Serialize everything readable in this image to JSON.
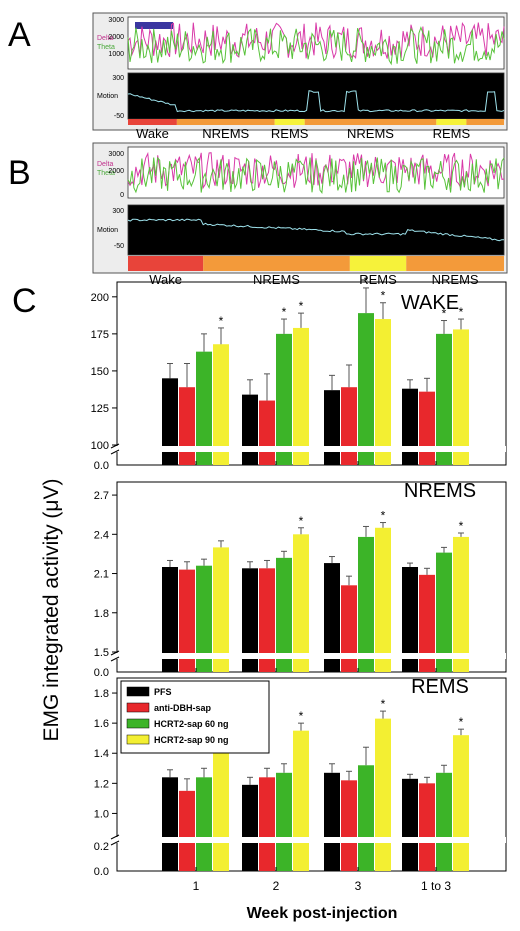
{
  "panels": {
    "A": {
      "letter": "A",
      "eeg_ticks": [
        "3000",
        "2000",
        "1000"
      ],
      "delta_label": "Delta",
      "theta_label": "Theta",
      "motion_label": "Motion",
      "motion_ticks": [
        "300",
        "-50"
      ],
      "stages": [
        {
          "label": "Wake",
          "color": "#e8443a",
          "start": 0.0,
          "end": 0.13
        },
        {
          "label": "NREMS",
          "color": "#f39a3a",
          "start": 0.13,
          "end": 0.39
        },
        {
          "label": "REMS",
          "color": "#f6f23a",
          "start": 0.39,
          "end": 0.47
        },
        {
          "label": "NREMS",
          "color": "#f39a3a",
          "start": 0.47,
          "end": 0.82
        },
        {
          "label": "REMS",
          "color": "#f6f23a",
          "start": 0.82,
          "end": 0.9
        },
        {
          "label": "",
          "color": "#f39a3a",
          "start": 0.9,
          "end": 1.0
        }
      ]
    },
    "B": {
      "letter": "B",
      "eeg_ticks": [
        "3000",
        "2000",
        "0"
      ],
      "delta_label": "Delta",
      "theta_label": "Theta",
      "motion_label": "Motion",
      "motion_ticks": [
        "300",
        "-50"
      ],
      "stages": [
        {
          "label": "Wake",
          "color": "#e8443a",
          "start": 0.0,
          "end": 0.2
        },
        {
          "label": "NREMS",
          "color": "#f39a3a",
          "start": 0.2,
          "end": 0.59
        },
        {
          "label": "REMS",
          "color": "#f6f23a",
          "start": 0.59,
          "end": 0.74
        },
        {
          "label": "NREMS",
          "color": "#f39a3a",
          "start": 0.74,
          "end": 1.0
        }
      ]
    },
    "C": {
      "letter": "C"
    }
  },
  "chart_data": {
    "type": "bar",
    "ylabel": "EMG integrated activity (μV)",
    "xlabel": "Week  post-injection",
    "categories": [
      "1",
      "2",
      "3",
      "1 to 3"
    ],
    "legend": {
      "placement": "top-left of REMS subplot",
      "entries": [
        "PFS",
        "anti-DBH-sap",
        "HCRT2-sap 60 ng",
        "HCRT2-sap 90 ng"
      ],
      "colors": [
        "#000000",
        "#e8282c",
        "#3cb428",
        "#f3ef32"
      ]
    },
    "subplots": [
      {
        "title": "WAKE",
        "upper_range": [
          100,
          210
        ],
        "break_bottom": "0.0",
        "ticks": [
          "200",
          "175",
          "150",
          "125",
          "100"
        ],
        "tick_values": [
          200,
          175,
          150,
          125,
          100
        ],
        "series": [
          {
            "values": [
              145,
              134,
              137,
              138
            ],
            "errors": [
              10,
              10,
              10,
              6
            ]
          },
          {
            "values": [
              139,
              130,
              139,
              136
            ],
            "errors": [
              16,
              18,
              15,
              9
            ]
          },
          {
            "values": [
              163,
              175,
              189,
              175
            ],
            "errors": [
              12,
              10,
              17,
              9
            ]
          },
          {
            "values": [
              168,
              179,
              185,
              178
            ],
            "errors": [
              11,
              10,
              11,
              7
            ]
          }
        ],
        "significant": [
          [
            0,
            3
          ],
          [
            1,
            2
          ],
          [
            1,
            3
          ],
          [
            2,
            2
          ],
          [
            2,
            3
          ],
          [
            3,
            2
          ],
          [
            3,
            3
          ]
        ]
      },
      {
        "title": "NREMS",
        "upper_range": [
          1.5,
          2.8
        ],
        "break_bottom": "0.0",
        "ticks": [
          "2.7",
          "2.4",
          "2.1",
          "1.8",
          "1.5"
        ],
        "tick_values": [
          2.7,
          2.4,
          2.1,
          1.8,
          1.5
        ],
        "series": [
          {
            "values": [
              2.15,
              2.14,
              2.18,
              2.15
            ],
            "errors": [
              0.05,
              0.05,
              0.05,
              0.03
            ]
          },
          {
            "values": [
              2.13,
              2.14,
              2.01,
              2.09
            ],
            "errors": [
              0.06,
              0.06,
              0.07,
              0.05
            ]
          },
          {
            "values": [
              2.16,
              2.22,
              2.38,
              2.26
            ],
            "errors": [
              0.05,
              0.05,
              0.08,
              0.04
            ]
          },
          {
            "values": [
              2.3,
              2.4,
              2.45,
              2.38
            ],
            "errors": [
              0.05,
              0.05,
              0.04,
              0.03
            ]
          }
        ],
        "significant": [
          [
            1,
            3
          ],
          [
            2,
            3
          ],
          [
            3,
            3
          ]
        ]
      },
      {
        "title": "REMS",
        "upper_range": [
          0.85,
          1.9
        ],
        "break_bottom": "0.0",
        "ticks": [
          "1.8",
          "1.6",
          "1.4",
          "1.2",
          "1.0"
        ],
        "tick_values": [
          1.8,
          1.6,
          1.4,
          1.2,
          1.0
        ],
        "lower_tick": "0.2",
        "series": [
          {
            "values": [
              1.24,
              1.19,
              1.27,
              1.23
            ],
            "errors": [
              0.05,
              0.05,
              0.06,
              0.03
            ]
          },
          {
            "values": [
              1.15,
              1.24,
              1.22,
              1.2
            ],
            "errors": [
              0.08,
              0.06,
              0.06,
              0.04
            ]
          },
          {
            "values": [
              1.24,
              1.27,
              1.32,
              1.27
            ],
            "errors": [
              0.06,
              0.06,
              0.12,
              0.05
            ]
          },
          {
            "values": [
              1.41,
              1.55,
              1.63,
              1.52
            ],
            "errors": [
              0.05,
              0.05,
              0.05,
              0.04
            ]
          }
        ],
        "significant": [
          [
            1,
            3
          ],
          [
            2,
            3
          ],
          [
            3,
            3
          ]
        ]
      }
    ]
  }
}
